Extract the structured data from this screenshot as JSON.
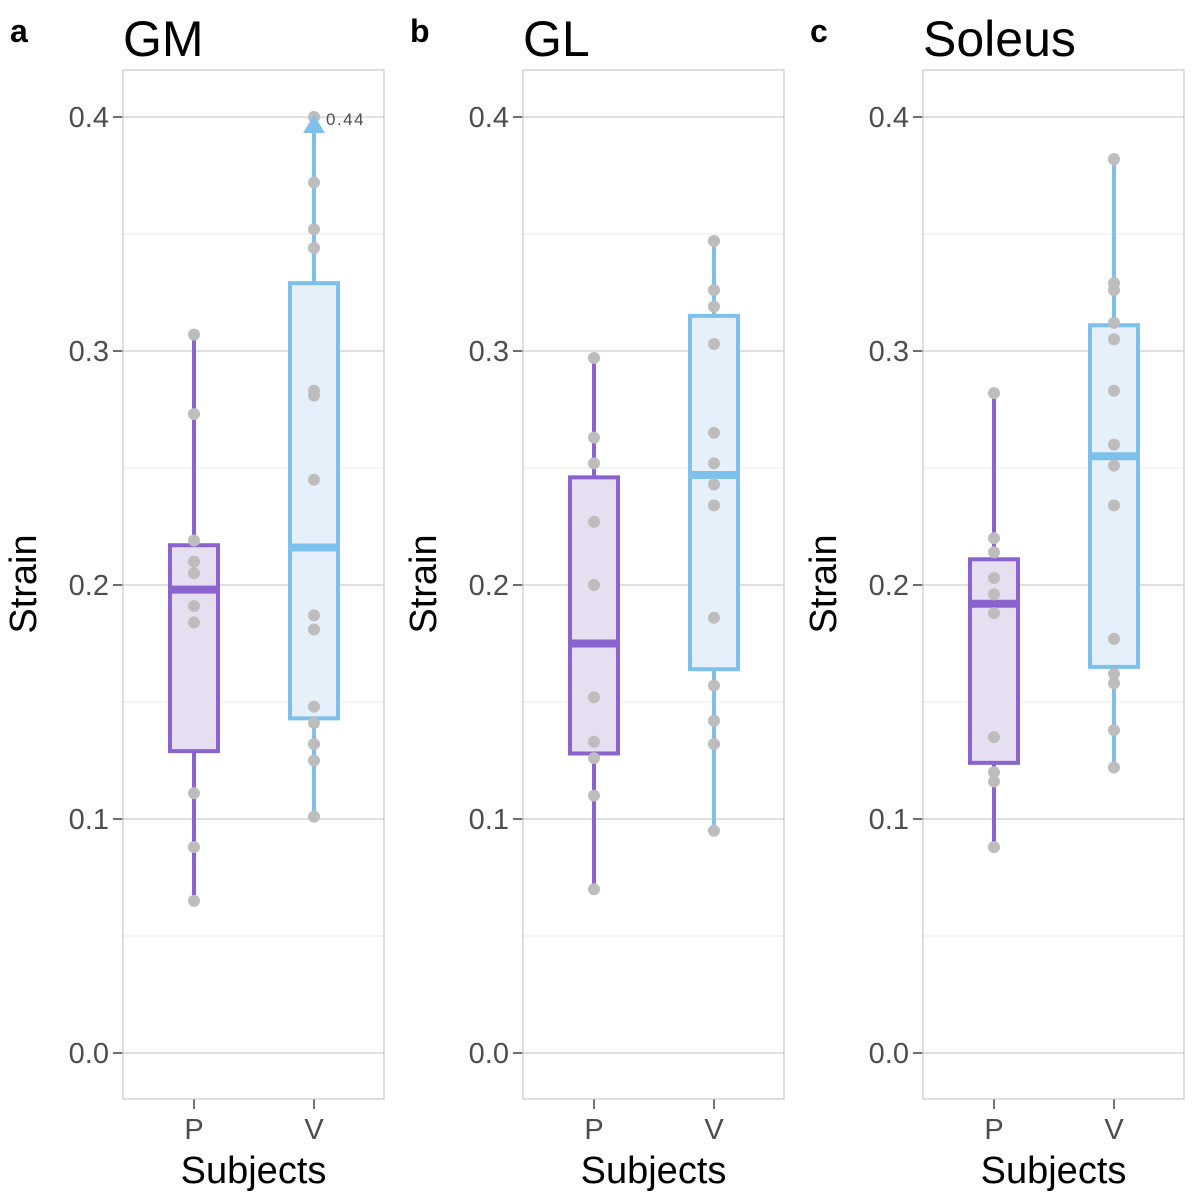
{
  "chart_data": [
    {
      "type": "box",
      "panel_letter": "a",
      "title": "GM",
      "xlabel": "Subjects",
      "ylabel": "Strain",
      "ylim": [
        -0.02,
        0.42
      ],
      "yticks": [
        "0.0",
        "0.1",
        "0.2",
        "0.3",
        "0.4"
      ],
      "categories": [
        "P",
        "V"
      ],
      "colors": {
        "P": "#8a63cf",
        "V": "#7ec0ec"
      },
      "fills": {
        "P": "#e6dff2",
        "V": "#e5f0fa"
      },
      "boxes": [
        {
          "category": "P",
          "whisker_low": 0.065,
          "q1": 0.129,
          "median": 0.198,
          "q3": 0.217,
          "whisker_high": 0.307,
          "points": [
            0.307,
            0.273,
            0.219,
            0.21,
            0.205,
            0.191,
            0.184,
            0.111,
            0.088,
            0.065
          ]
        },
        {
          "category": "V",
          "whisker_low": 0.101,
          "q1": 0.143,
          "median": 0.216,
          "q3": 0.329,
          "whisker_high": 0.4,
          "points": [
            0.4,
            0.372,
            0.352,
            0.344,
            0.283,
            0.281,
            0.245,
            0.187,
            0.181,
            0.148,
            0.141,
            0.132,
            0.125,
            0.101
          ]
        }
      ],
      "truncated": {
        "category": "V",
        "value": 0.4,
        "label": "0.44"
      }
    },
    {
      "type": "box",
      "panel_letter": "b",
      "title": "GL",
      "xlabel": "Subjects",
      "ylabel": "Strain",
      "ylim": [
        -0.02,
        0.42
      ],
      "yticks": [
        "0.0",
        "0.1",
        "0.2",
        "0.3",
        "0.4"
      ],
      "categories": [
        "P",
        "V"
      ],
      "colors": {
        "P": "#8a63cf",
        "V": "#7ec0ec"
      },
      "fills": {
        "P": "#e6dff2",
        "V": "#e5f0fa"
      },
      "boxes": [
        {
          "category": "P",
          "whisker_low": 0.07,
          "q1": 0.128,
          "median": 0.175,
          "q3": 0.246,
          "whisker_high": 0.297,
          "points": [
            0.297,
            0.263,
            0.252,
            0.227,
            0.2,
            0.152,
            0.133,
            0.126,
            0.11,
            0.07
          ]
        },
        {
          "category": "V",
          "whisker_low": 0.095,
          "q1": 0.164,
          "median": 0.247,
          "q3": 0.315,
          "whisker_high": 0.347,
          "points": [
            0.347,
            0.326,
            0.319,
            0.303,
            0.265,
            0.252,
            0.243,
            0.234,
            0.186,
            0.157,
            0.142,
            0.132,
            0.095
          ]
        }
      ]
    },
    {
      "type": "box",
      "panel_letter": "c",
      "title": "Soleus",
      "xlabel": "Subjects",
      "ylabel": "Strain",
      "ylim": [
        -0.02,
        0.42
      ],
      "yticks": [
        "0.0",
        "0.1",
        "0.2",
        "0.3",
        "0.4"
      ],
      "categories": [
        "P",
        "V"
      ],
      "colors": {
        "P": "#8a63cf",
        "V": "#7ec0ec"
      },
      "fills": {
        "P": "#e6dff2",
        "V": "#e5f0fa"
      },
      "boxes": [
        {
          "category": "P",
          "whisker_low": 0.088,
          "q1": 0.124,
          "median": 0.192,
          "q3": 0.211,
          "whisker_high": 0.282,
          "points": [
            0.282,
            0.22,
            0.214,
            0.203,
            0.196,
            0.188,
            0.135,
            0.12,
            0.116,
            0.088
          ]
        },
        {
          "category": "V",
          "whisker_low": 0.122,
          "q1": 0.165,
          "median": 0.255,
          "q3": 0.311,
          "whisker_high": 0.382,
          "points": [
            0.382,
            0.329,
            0.326,
            0.312,
            0.305,
            0.283,
            0.26,
            0.251,
            0.234,
            0.177,
            0.162,
            0.158,
            0.138,
            0.122
          ]
        }
      ]
    }
  ]
}
